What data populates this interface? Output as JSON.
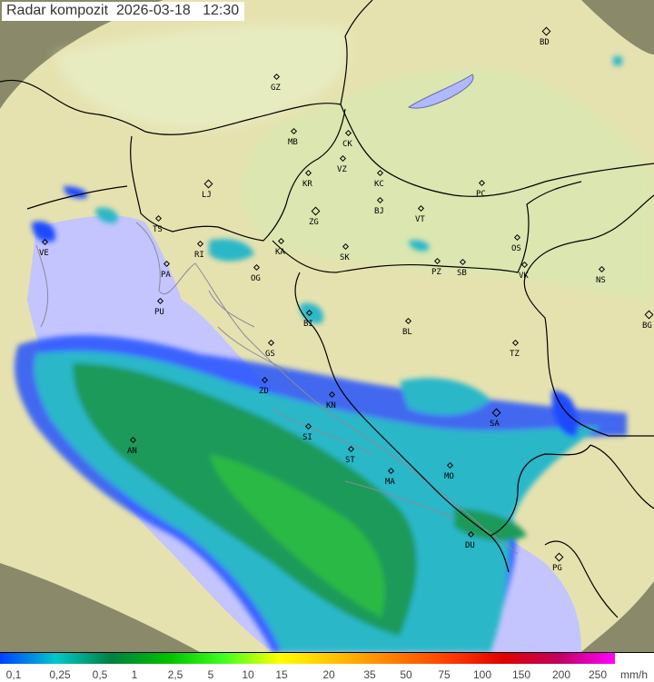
{
  "title": {
    "name": "Radar kompozit",
    "date": "2026-03-18",
    "time": "12:30"
  },
  "colors": {
    "land": "#e9e6b0",
    "lowland": "#dfe9b4",
    "sea": "#c4c4ff",
    "outside": "#8a8a6a",
    "border": "#000000",
    "coast": "#8a8a9a",
    "rain_light": "#2ab7c8",
    "rain_mid": "#1a9a5a",
    "rain_heavy": "#30d030",
    "rain_edge": "#1d4bff"
  },
  "cities": [
    {
      "code": "BD",
      "capital": true
    },
    {
      "code": "GZ"
    },
    {
      "code": "MB"
    },
    {
      "code": "CK"
    },
    {
      "code": "VZ"
    },
    {
      "code": "KR"
    },
    {
      "code": "KC"
    },
    {
      "code": "PC"
    },
    {
      "code": "LJ",
      "capital": true
    },
    {
      "code": "ZG",
      "capital": true
    },
    {
      "code": "BJ"
    },
    {
      "code": "VT"
    },
    {
      "code": "TS"
    },
    {
      "code": "VE"
    },
    {
      "code": "RI"
    },
    {
      "code": "KA"
    },
    {
      "code": "SK"
    },
    {
      "code": "OS"
    },
    {
      "code": "PA"
    },
    {
      "code": "OG"
    },
    {
      "code": "PZ"
    },
    {
      "code": "SB"
    },
    {
      "code": "VK"
    },
    {
      "code": "NS"
    },
    {
      "code": "PU"
    },
    {
      "code": "BI"
    },
    {
      "code": "BL"
    },
    {
      "code": "BG",
      "capital": true
    },
    {
      "code": "GS"
    },
    {
      "code": "TZ"
    },
    {
      "code": "ZD"
    },
    {
      "code": "KN"
    },
    {
      "code": "SI"
    },
    {
      "code": "SA",
      "capital": true
    },
    {
      "code": "AN"
    },
    {
      "code": "ST"
    },
    {
      "code": "MO"
    },
    {
      "code": "MA"
    },
    {
      "code": "DU"
    },
    {
      "code": "PG",
      "capital": true
    }
  ],
  "legend": {
    "labels": [
      "0,1",
      "0,25",
      "0,5",
      "1",
      "2,5",
      "5",
      "10",
      "15",
      "20",
      "35",
      "50",
      "75",
      "100",
      "150",
      "200",
      "250"
    ],
    "unit": "mm/h",
    "gradient": [
      "#0040ff",
      "#00c8c8",
      "#008040",
      "#00c000",
      "#40ff20",
      "#ffff00",
      "#ffc000",
      "#ff8000",
      "#ff4000",
      "#e00000",
      "#c00060",
      "#ff00ff"
    ]
  }
}
